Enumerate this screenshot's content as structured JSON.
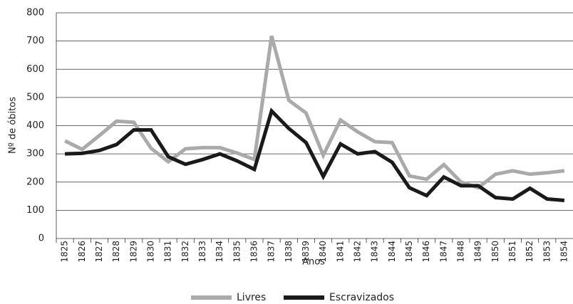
{
  "chart_data": {
    "type": "line",
    "x_label": "Anos",
    "y_label": "Nº de óbitos",
    "categories": [
      "1825",
      "1826",
      "1827",
      "1828",
      "1829",
      "1830",
      "1831",
      "1832",
      "1833",
      "1834",
      "1835",
      "1836",
      "1837",
      "1838",
      "1839",
      "1840",
      "1841",
      "1842",
      "1843",
      "1844",
      "1845",
      "1846",
      "1847",
      "1848",
      "1849",
      "1850",
      "1851",
      "1852",
      "1853",
      "1854"
    ],
    "series": [
      {
        "name": "Livres",
        "color": "#aaaaaa",
        "values": [
          346,
          316,
          365,
          416,
          412,
          320,
          272,
          318,
          322,
          322,
          303,
          280,
          718,
          490,
          445,
          295,
          420,
          378,
          343,
          340,
          222,
          210,
          262,
          200,
          180,
          228,
          240,
          228,
          233,
          240
        ]
      },
      {
        "name": "Escravizados",
        "color": "#1a1a1a",
        "values": [
          300,
          302,
          312,
          333,
          385,
          385,
          290,
          263,
          280,
          300,
          275,
          245,
          452,
          390,
          340,
          220,
          335,
          300,
          308,
          270,
          180,
          152,
          218,
          187,
          187,
          145,
          140,
          178,
          140,
          135
        ]
      }
    ],
    "ylim": [
      0,
      800
    ],
    "yticks": [
      0,
      100,
      200,
      300,
      400,
      500,
      600,
      700,
      800
    ],
    "grid": true,
    "legend": "bottom"
  }
}
